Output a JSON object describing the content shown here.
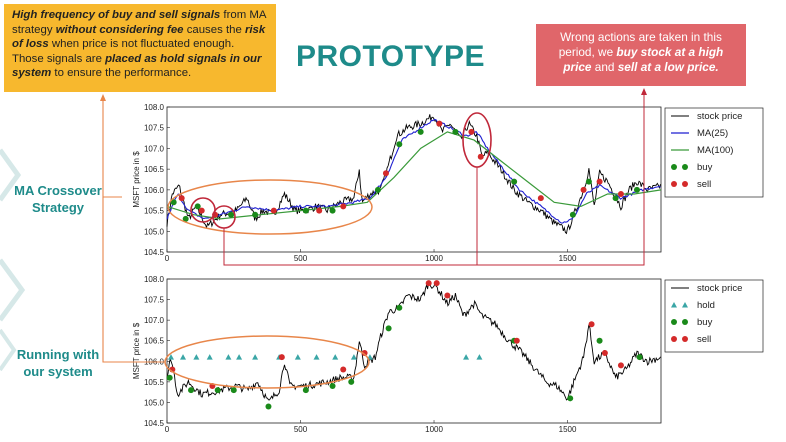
{
  "slide": {
    "title": "PROTOTYPE",
    "yellow_note": [
      {
        "t": "High frequency of buy and sell signals",
        "b": true
      },
      {
        "t": " from MA strategy ",
        "b": false
      },
      {
        "t": "without considering fee",
        "b": true
      },
      {
        "t": " causes the ",
        "b": false
      },
      {
        "t": "risk of loss",
        "b": true
      },
      {
        "t": " when price is not fluctuated enough. Those signals are ",
        "b": false
      },
      {
        "t": "placed as hold signals in our system",
        "b": true
      },
      {
        "t": " to ensure the performance.",
        "b": false
      }
    ],
    "red_note": [
      {
        "t": "Wrong actions are taken in this period, we ",
        "b": false
      },
      {
        "t": "buy stock at a high price",
        "b": true
      },
      {
        "t": " and ",
        "b": false
      },
      {
        "t": "sell at a low price.",
        "b": true
      }
    ],
    "label_top": "MA Crossover Strategy",
    "label_bottom": "Running with our system",
    "colors": {
      "accent": "#1e8b8a",
      "yellow": "#f7b82e",
      "red_box": "#e0666a",
      "price": "#000000",
      "ma25": "#1f1fd0",
      "ma100": "#3a9a3a",
      "buy": "#1a8a1a",
      "sell": "#d42a2a",
      "hold": "#3aa6a6",
      "annot_orange": "#e8864a",
      "annot_red": "#c0283a"
    }
  },
  "chart_data": [
    {
      "type": "line",
      "ylabel": "MSFT price in $",
      "xlim": [
        0,
        1850
      ],
      "ylim": [
        104.5,
        108.0
      ],
      "xticks": [
        "0",
        "500",
        "1000",
        "1500"
      ],
      "yticks": [
        "104.5",
        "105.0",
        "105.5",
        "106.0",
        "106.5",
        "107.0",
        "107.5",
        "108.0"
      ],
      "legend": [
        "stock price",
        "MA(25)",
        "MA(100)",
        "buy",
        "sell"
      ],
      "legend_position": "right",
      "price_key": [
        [
          0,
          105.2
        ],
        [
          20,
          105.9
        ],
        [
          45,
          106.1
        ],
        [
          80,
          105.3
        ],
        [
          110,
          105.6
        ],
        [
          150,
          105.1
        ],
        [
          200,
          105.4
        ],
        [
          260,
          105.5
        ],
        [
          300,
          105.8
        ],
        [
          330,
          105.3
        ],
        [
          360,
          105.5
        ],
        [
          400,
          105.4
        ],
        [
          440,
          105.9
        ],
        [
          480,
          105.5
        ],
        [
          520,
          105.5
        ],
        [
          560,
          105.6
        ],
        [
          600,
          105.5
        ],
        [
          650,
          105.7
        ],
        [
          700,
          105.8
        ],
        [
          720,
          106.5
        ],
        [
          730,
          105.7
        ],
        [
          760,
          105.9
        ],
        [
          800,
          106.0
        ],
        [
          830,
          106.6
        ],
        [
          860,
          107.3
        ],
        [
          900,
          107.5
        ],
        [
          950,
          107.6
        ],
        [
          1000,
          107.8
        ],
        [
          1030,
          107.4
        ],
        [
          1060,
          107.6
        ],
        [
          1100,
          107.2
        ],
        [
          1130,
          107.6
        ],
        [
          1160,
          107.3
        ],
        [
          1180,
          106.8
        ],
        [
          1200,
          106.9
        ],
        [
          1250,
          106.5
        ],
        [
          1300,
          106.0
        ],
        [
          1350,
          105.7
        ],
        [
          1400,
          105.5
        ],
        [
          1450,
          105.2
        ],
        [
          1500,
          105.0
        ],
        [
          1530,
          105.5
        ],
        [
          1560,
          106.0
        ],
        [
          1580,
          106.5
        ],
        [
          1600,
          105.6
        ],
        [
          1620,
          106.4
        ],
        [
          1650,
          106.2
        ],
        [
          1700,
          105.6
        ],
        [
          1730,
          106.0
        ],
        [
          1760,
          106.2
        ],
        [
          1800,
          106.0
        ],
        [
          1850,
          106.1
        ]
      ],
      "ma25_key": [
        [
          0,
          105.3
        ],
        [
          40,
          105.9
        ],
        [
          80,
          105.5
        ],
        [
          140,
          105.3
        ],
        [
          200,
          105.4
        ],
        [
          300,
          105.6
        ],
        [
          400,
          105.5
        ],
        [
          500,
          105.6
        ],
        [
          600,
          105.6
        ],
        [
          700,
          105.7
        ],
        [
          760,
          105.8
        ],
        [
          820,
          106.3
        ],
        [
          880,
          107.2
        ],
        [
          950,
          107.5
        ],
        [
          1000,
          107.7
        ],
        [
          1060,
          107.5
        ],
        [
          1120,
          107.3
        ],
        [
          1160,
          107.4
        ],
        [
          1200,
          107.0
        ],
        [
          1260,
          106.5
        ],
        [
          1320,
          106.0
        ],
        [
          1400,
          105.6
        ],
        [
          1480,
          105.2
        ],
        [
          1520,
          105.3
        ],
        [
          1570,
          105.9
        ],
        [
          1620,
          106.1
        ],
        [
          1700,
          105.8
        ],
        [
          1780,
          106.0
        ],
        [
          1850,
          106.1
        ]
      ],
      "ma100_key": [
        [
          0,
          105.6
        ],
        [
          100,
          105.4
        ],
        [
          200,
          105.3
        ],
        [
          350,
          105.4
        ],
        [
          500,
          105.5
        ],
        [
          650,
          105.6
        ],
        [
          750,
          105.7
        ],
        [
          850,
          106.3
        ],
        [
          950,
          107.0
        ],
        [
          1050,
          107.4
        ],
        [
          1150,
          107.2
        ],
        [
          1250,
          106.7
        ],
        [
          1350,
          106.2
        ],
        [
          1450,
          105.7
        ],
        [
          1550,
          105.6
        ],
        [
          1650,
          105.9
        ],
        [
          1750,
          105.9
        ],
        [
          1850,
          106.0
        ]
      ],
      "buy": [
        [
          25,
          105.7
        ],
        [
          70,
          105.3
        ],
        [
          115,
          105.6
        ],
        [
          240,
          105.4
        ],
        [
          330,
          105.4
        ],
        [
          520,
          105.5
        ],
        [
          620,
          105.5
        ],
        [
          790,
          106.0
        ],
        [
          870,
          107.1
        ],
        [
          950,
          107.4
        ],
        [
          1080,
          107.4
        ],
        [
          1300,
          106.2
        ],
        [
          1520,
          105.4
        ],
        [
          1580,
          106.2
        ],
        [
          1680,
          105.8
        ],
        [
          1760,
          106.0
        ]
      ],
      "sell": [
        [
          55,
          105.8
        ],
        [
          130,
          105.5
        ],
        [
          180,
          105.4
        ],
        [
          400,
          105.5
        ],
        [
          570,
          105.5
        ],
        [
          660,
          105.6
        ],
        [
          820,
          106.4
        ],
        [
          1020,
          107.6
        ],
        [
          1140,
          107.4
        ],
        [
          1175,
          106.8
        ],
        [
          1400,
          105.8
        ],
        [
          1560,
          106.0
        ],
        [
          1620,
          106.2
        ],
        [
          1700,
          105.9
        ]
      ]
    },
    {
      "type": "line",
      "ylabel": "MSFT price in $",
      "xlim": [
        0,
        1850
      ],
      "ylim": [
        104.5,
        108.0
      ],
      "xticks": [
        "0",
        "500",
        "1000",
        "1500"
      ],
      "yticks": [
        "104.5",
        "105.0",
        "105.5",
        "106.0",
        "106.5",
        "107.0",
        "107.5",
        "108.0"
      ],
      "legend": [
        "stock price",
        "hold",
        "buy",
        "sell"
      ],
      "legend_position": "right",
      "price_key": [
        [
          0,
          105.6
        ],
        [
          15,
          106.1
        ],
        [
          40,
          105.2
        ],
        [
          80,
          105.5
        ],
        [
          130,
          105.2
        ],
        [
          200,
          105.3
        ],
        [
          260,
          105.4
        ],
        [
          300,
          105.3
        ],
        [
          340,
          105.5
        ],
        [
          380,
          105.0
        ],
        [
          420,
          105.3
        ],
        [
          440,
          106.0
        ],
        [
          460,
          105.4
        ],
        [
          520,
          105.4
        ],
        [
          600,
          105.5
        ],
        [
          650,
          105.6
        ],
        [
          700,
          105.6
        ],
        [
          720,
          106.5
        ],
        [
          740,
          105.9
        ],
        [
          780,
          106.1
        ],
        [
          800,
          106.6
        ],
        [
          830,
          107.2
        ],
        [
          870,
          107.3
        ],
        [
          900,
          107.6
        ],
        [
          950,
          107.5
        ],
        [
          980,
          107.9
        ],
        [
          1010,
          107.8
        ],
        [
          1050,
          107.4
        ],
        [
          1080,
          107.6
        ],
        [
          1110,
          107.1
        ],
        [
          1150,
          107.4
        ],
        [
          1180,
          107.1
        ],
        [
          1230,
          106.9
        ],
        [
          1280,
          106.5
        ],
        [
          1330,
          106.2
        ],
        [
          1380,
          105.8
        ],
        [
          1420,
          105.5
        ],
        [
          1460,
          105.4
        ],
        [
          1500,
          105.1
        ],
        [
          1530,
          105.6
        ],
        [
          1560,
          106.1
        ],
        [
          1580,
          106.9
        ],
        [
          1600,
          106.0
        ],
        [
          1640,
          106.2
        ],
        [
          1680,
          105.6
        ],
        [
          1720,
          105.8
        ],
        [
          1760,
          106.2
        ],
        [
          1800,
          106.0
        ],
        [
          1850,
          106.1
        ]
      ],
      "hold": [
        [
          15,
          106.1
        ],
        [
          60,
          106.1
        ],
        [
          110,
          106.1
        ],
        [
          160,
          106.1
        ],
        [
          230,
          106.1
        ],
        [
          270,
          106.1
        ],
        [
          330,
          106.1
        ],
        [
          420,
          106.1
        ],
        [
          490,
          106.1
        ],
        [
          560,
          106.1
        ],
        [
          630,
          106.1
        ],
        [
          700,
          106.1
        ],
        [
          760,
          106.1
        ],
        [
          1120,
          106.1
        ],
        [
          1170,
          106.1
        ]
      ],
      "buy": [
        [
          10,
          105.6
        ],
        [
          90,
          105.3
        ],
        [
          190,
          105.3
        ],
        [
          250,
          105.3
        ],
        [
          380,
          104.9
        ],
        [
          520,
          105.3
        ],
        [
          620,
          105.4
        ],
        [
          690,
          105.5
        ],
        [
          830,
          106.8
        ],
        [
          870,
          107.3
        ],
        [
          1300,
          106.5
        ],
        [
          1510,
          105.1
        ],
        [
          1620,
          106.5
        ],
        [
          1770,
          106.1
        ]
      ],
      "sell": [
        [
          20,
          105.8
        ],
        [
          170,
          105.4
        ],
        [
          430,
          106.1
        ],
        [
          660,
          105.8
        ],
        [
          740,
          106.2
        ],
        [
          980,
          107.9
        ],
        [
          1010,
          107.9
        ],
        [
          1050,
          107.6
        ],
        [
          1310,
          106.5
        ],
        [
          1590,
          106.9
        ],
        [
          1640,
          106.2
        ],
        [
          1700,
          105.9
        ]
      ]
    }
  ]
}
